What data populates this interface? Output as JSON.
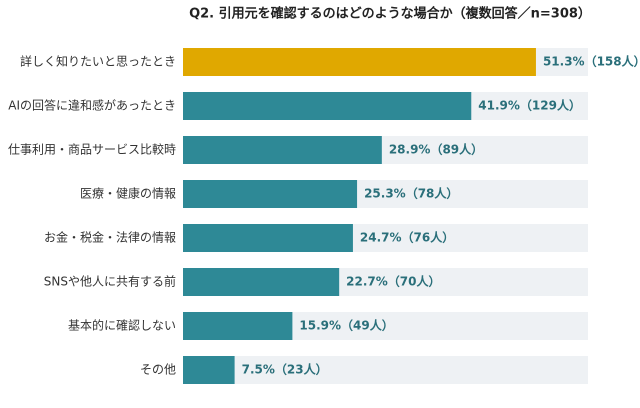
{
  "chart_data": {
    "type": "hbar",
    "title": "Q2. 引用元を確認するのはどのような場合か（複数回答／n=308）",
    "categories": [
      "詳しく知りたいと思ったとき",
      "AIの回答に違和感があったとき",
      "仕事利用・商品サービス比較時",
      "医療・健康の情報",
      "お金・税金・法律の情報",
      "SNSや他人に共有する前",
      "基本的に確認しない",
      "その他"
    ],
    "values": [
      51.3,
      41.9,
      28.9,
      25.3,
      24.7,
      22.7,
      15.9,
      7.5
    ],
    "value_labels": [
      "51.3%（158人）",
      "41.9%（129人）",
      "28.9%（89人）",
      "25.3%（78人）",
      "24.7%（76人）",
      "22.7%（70人）",
      "15.9%（49人）",
      "7.5%（23人）"
    ],
    "colors": [
      "#e0a800",
      "#2e8996",
      "#2e8996",
      "#2e8996",
      "#2e8996",
      "#2e8996",
      "#2e8996",
      "#2e8996"
    ]
  }
}
